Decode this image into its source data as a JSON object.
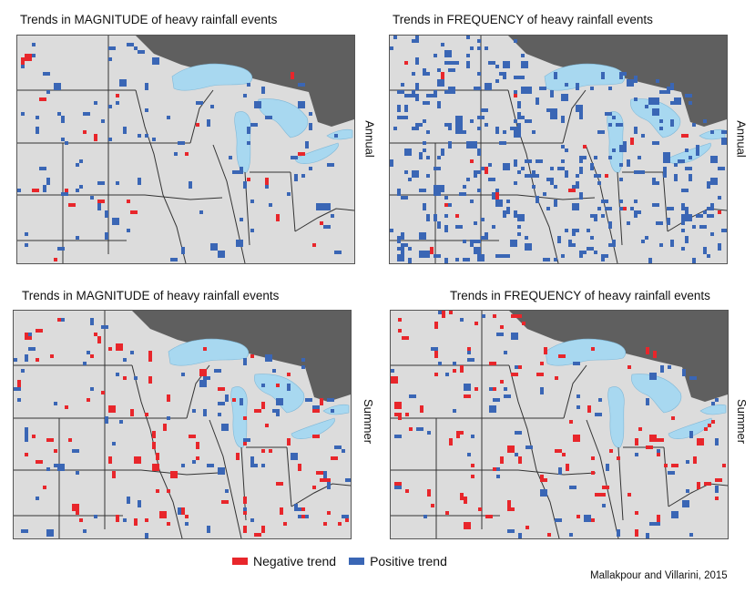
{
  "panels": [
    {
      "title": "Trends in MAGNITUDE of heavy rainfall events",
      "season": "Annual",
      "red": 0.12,
      "blue": 0.78
    },
    {
      "title": "Trends in FREQUENCY of heavy rainfall events",
      "season": "Annual",
      "red": 0.14,
      "blue": 2.6
    },
    {
      "title": "Trends in MAGNITUDE of heavy rainfall events",
      "season": "Summer",
      "red": 0.55,
      "blue": 0.75
    },
    {
      "title": "Trends in FREQUENCY of heavy rainfall events",
      "season": "Summer",
      "red": 0.7,
      "blue": 0.6
    }
  ],
  "legend": {
    "negative": "Negative trend",
    "positive": "Positive trend"
  },
  "credit": "Mallakpour and Villarini, 2015",
  "colors": {
    "negative": "#e8262b",
    "positive": "#3a66b5",
    "land": "#dcdcdc",
    "water": "#a8d8f0",
    "outside": "#5f5f5f",
    "border": "#333333"
  }
}
